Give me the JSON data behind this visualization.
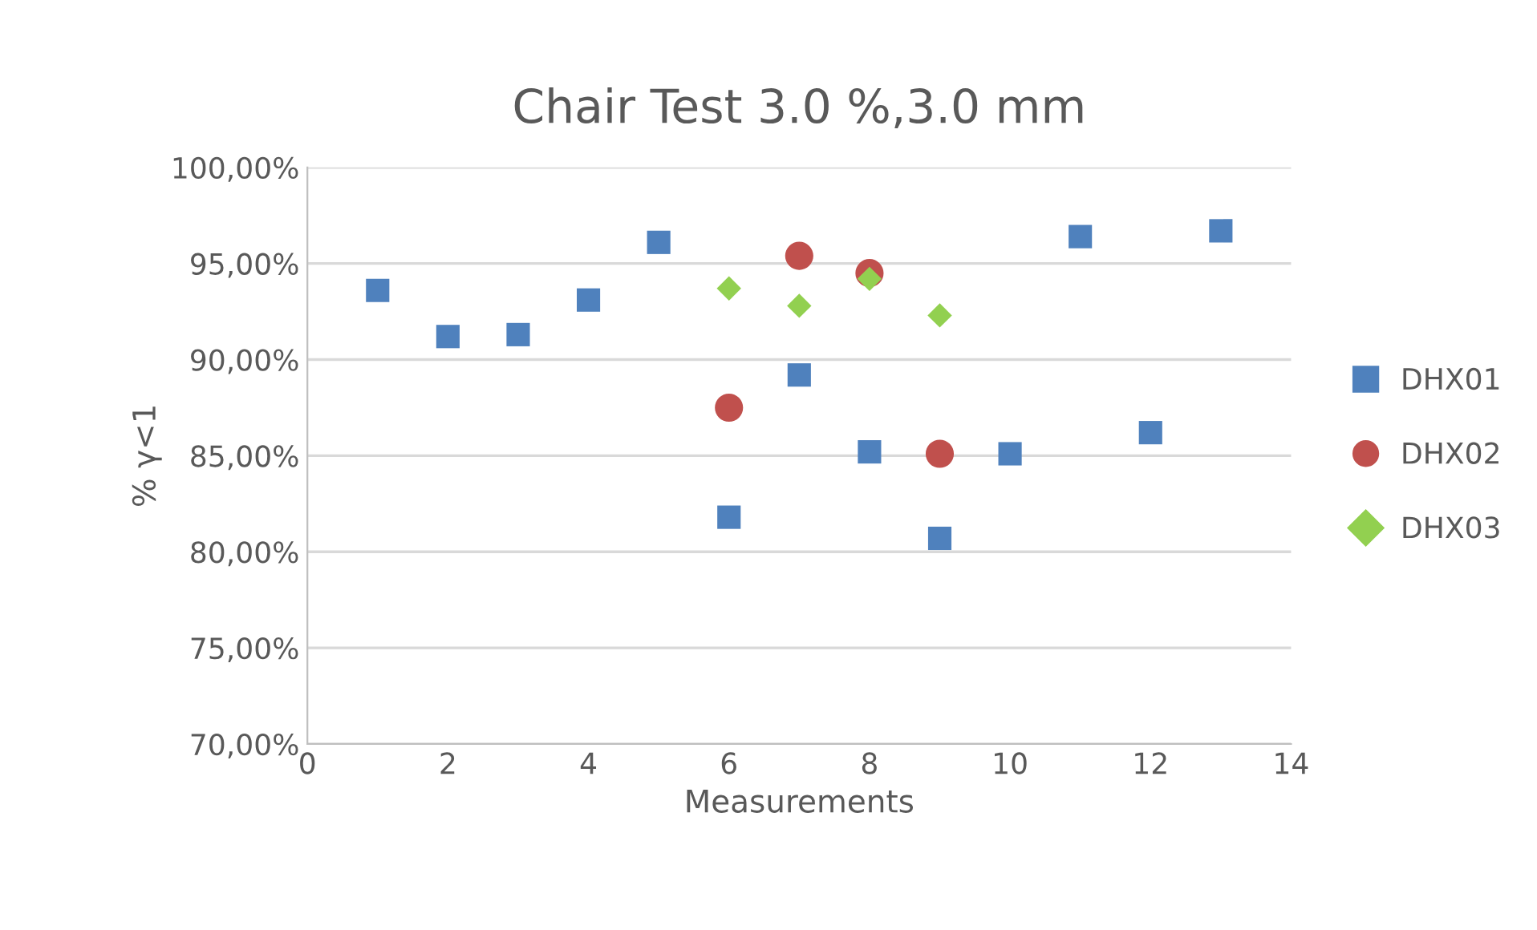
{
  "chart_data": {
    "type": "scatter",
    "title": "Chair Test 3.0 %,3.0 mm",
    "xlabel": "Measurements",
    "ylabel": "% γ<1",
    "series": [
      {
        "name": "DHX01",
        "color": "#4f81bd",
        "marker": "square",
        "x": [
          1,
          2,
          3,
          4,
          5,
          6,
          7,
          8,
          9,
          10,
          11,
          12,
          13
        ],
        "values": [
          93.6,
          91.2,
          91.3,
          93.1,
          96.1,
          81.8,
          89.2,
          85.2,
          80.7,
          85.1,
          96.4,
          86.2,
          96.7
        ]
      },
      {
        "name": "DHX02",
        "color": "#c0504d",
        "marker": "circle",
        "x": [
          6,
          7,
          8,
          9
        ],
        "values": [
          87.5,
          95.4,
          94.5,
          85.1
        ]
      },
      {
        "name": "DHX03",
        "color": "#92d050",
        "marker": "diamond",
        "x": [
          6,
          7,
          8,
          9
        ],
        "values": [
          93.7,
          92.8,
          94.2,
          92.3
        ]
      }
    ],
    "xlim": [
      0,
      14
    ],
    "xticks": [
      0,
      2,
      4,
      6,
      8,
      10,
      12,
      14
    ],
    "ylim": [
      70,
      100
    ],
    "yticks": [
      {
        "value": 70,
        "label": "70,00%"
      },
      {
        "value": 75,
        "label": "75,00%"
      },
      {
        "value": 80,
        "label": "80,00%"
      },
      {
        "value": 85,
        "label": "85,00%"
      },
      {
        "value": 90,
        "label": "90,00%"
      },
      {
        "value": 95,
        "label": "95,00%"
      },
      {
        "value": 100,
        "label": "100,00%"
      }
    ],
    "grid": "y",
    "legend": "right"
  }
}
